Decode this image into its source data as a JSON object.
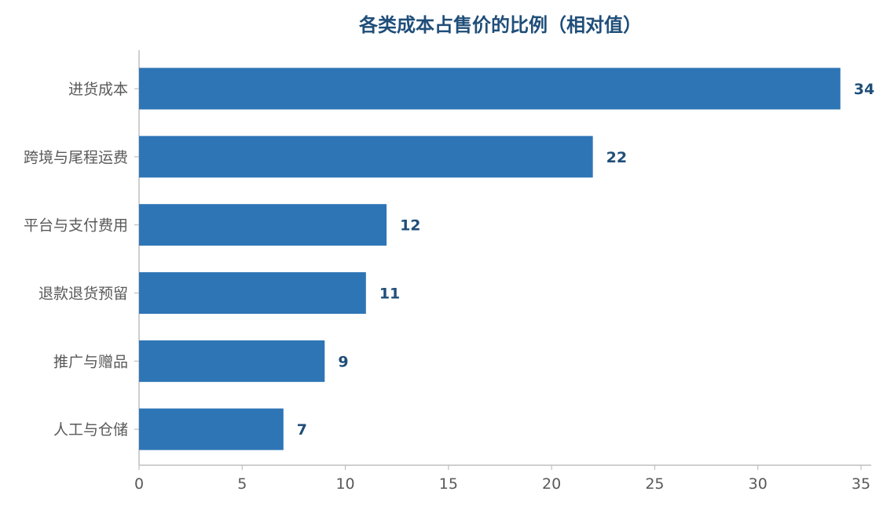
{
  "chart_data": {
    "type": "bar",
    "orientation": "horizontal",
    "title": "各类成本占售价的比例（相对值）",
    "xlabel": "",
    "ylabel": "",
    "categories": [
      "进货成本",
      "跨境与尾程运费",
      "平台与支付费用",
      "退款退货预留",
      "推广与赠品",
      "人工与仓储"
    ],
    "values": [
      34,
      22,
      12,
      11,
      9,
      7
    ],
    "xlim": [
      0,
      35.5
    ],
    "xticks": [
      0,
      5,
      10,
      15,
      20,
      25,
      30,
      35
    ],
    "grid": false,
    "legend": "none",
    "data_labels": true
  },
  "colors": {
    "bar": "#2e75b6",
    "label": "#1f4e79",
    "axis": "#bfbfbf",
    "tick_text": "#595959",
    "title": "#1f4e79"
  }
}
